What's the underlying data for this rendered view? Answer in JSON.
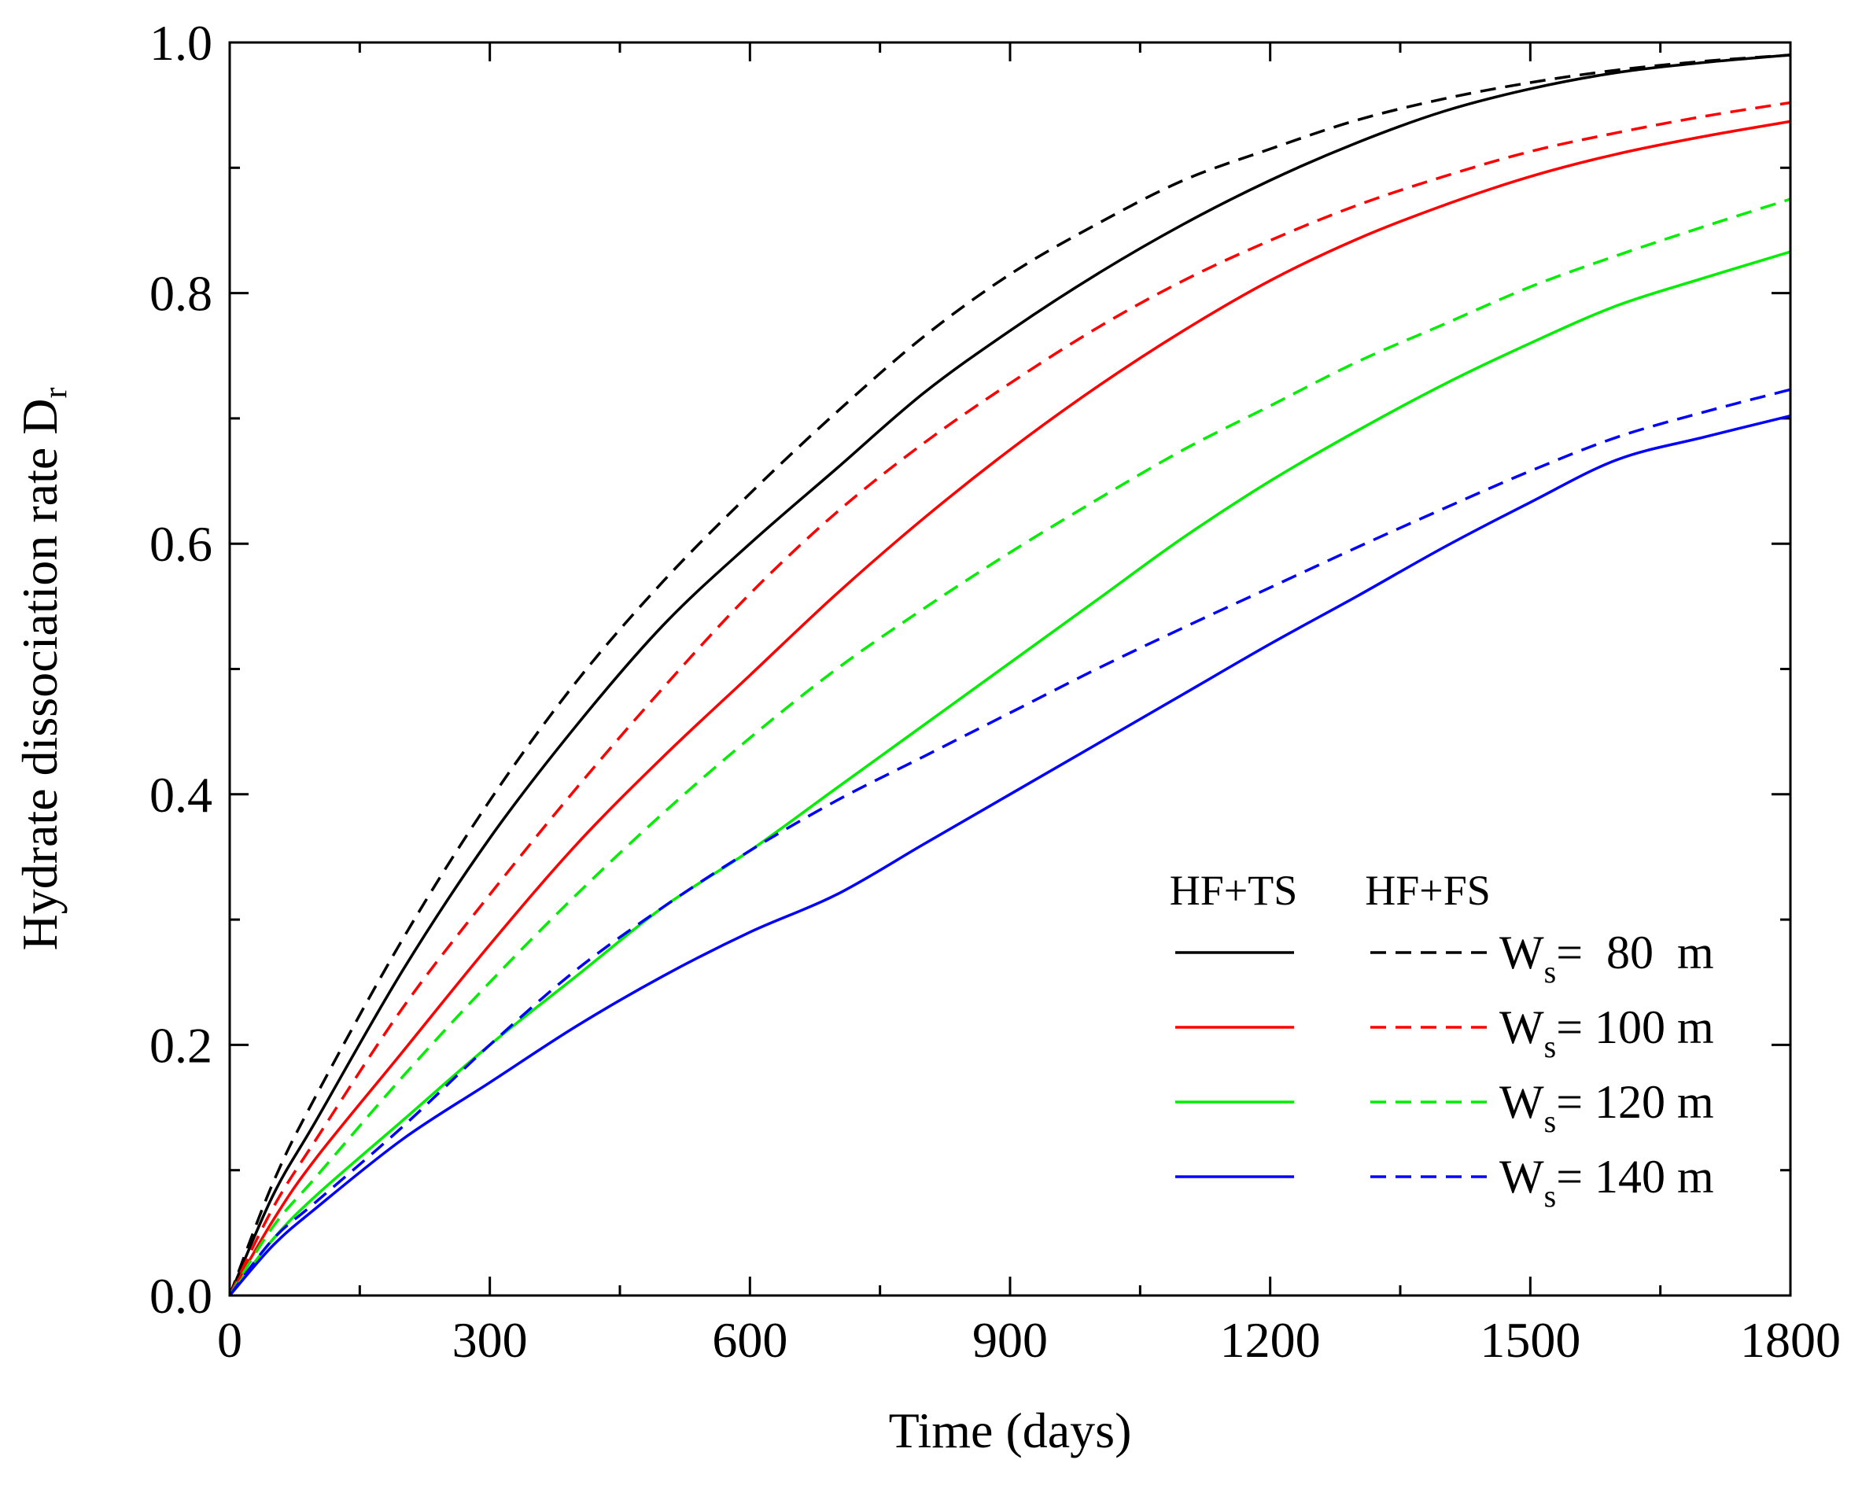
{
  "chart_data": {
    "type": "line",
    "title": "",
    "xlabel": "Time (days)",
    "ylabel": {
      "main": "Hydrate dissociation rate D",
      "subscript": "r"
    },
    "xlim": [
      0,
      1800
    ],
    "ylim": [
      0.0,
      1.0
    ],
    "x_ticks": [
      0,
      300,
      600,
      900,
      1200,
      1500,
      1800
    ],
    "x_tick_labels": [
      "0",
      "300",
      "600",
      "900",
      "1200",
      "1500",
      "1800"
    ],
    "x_minor_ticks": [
      150,
      450,
      750,
      1050,
      1350,
      1650
    ],
    "y_ticks": [
      0.0,
      0.2,
      0.4,
      0.6,
      0.8,
      1.0
    ],
    "y_tick_labels": [
      "0.0",
      "0.2",
      "0.4",
      "0.6",
      "0.8",
      "1.0"
    ],
    "y_minor_ticks": [
      0.1,
      0.3,
      0.5,
      0.7,
      0.9
    ],
    "grid": false,
    "legend_position": "bottom-right",
    "legend": {
      "col_headers": [
        "HF+TS",
        "HF+FS"
      ],
      "entries": [
        {
          "prefix": "W",
          "subscript": "s",
          "suffix": "=  80  m",
          "color": "#000000"
        },
        {
          "prefix": "W",
          "subscript": "s",
          "suffix": "= 100 m",
          "color": "#ff0000"
        },
        {
          "prefix": "W",
          "subscript": "s",
          "suffix": "= 120 m",
          "color": "#00ee00"
        },
        {
          "prefix": "W",
          "subscript": "s",
          "suffix": "= 140 m",
          "color": "#0000ff"
        }
      ]
    },
    "x": [
      0,
      50,
      100,
      200,
      300,
      400,
      500,
      600,
      700,
      800,
      900,
      1000,
      1100,
      1200,
      1300,
      1400,
      1500,
      1600,
      1700,
      1800
    ],
    "series": [
      {
        "name": "HF+TS Ws=80 m",
        "style": "solid",
        "color": "#000000",
        "values": [
          0.0,
          0.08,
          0.14,
          0.26,
          0.365,
          0.455,
          0.535,
          0.6,
          0.66,
          0.72,
          0.77,
          0.815,
          0.855,
          0.89,
          0.92,
          0.945,
          0.963,
          0.976,
          0.984,
          0.99
        ]
      },
      {
        "name": "HF+FS Ws=80 m",
        "style": "dashed",
        "color": "#000000",
        "values": [
          0.0,
          0.09,
          0.16,
          0.285,
          0.395,
          0.49,
          0.57,
          0.64,
          0.705,
          0.765,
          0.815,
          0.855,
          0.89,
          0.915,
          0.938,
          0.955,
          0.968,
          0.978,
          0.985,
          0.99
        ]
      },
      {
        "name": "HF+TS Ws=100 m",
        "style": "solid",
        "color": "#ff0000",
        "values": [
          0.0,
          0.06,
          0.11,
          0.195,
          0.28,
          0.36,
          0.43,
          0.495,
          0.56,
          0.62,
          0.675,
          0.725,
          0.77,
          0.81,
          0.843,
          0.87,
          0.893,
          0.911,
          0.925,
          0.937
        ]
      },
      {
        "name": "HF+FS Ws=100 m",
        "style": "dashed",
        "color": "#ff0000",
        "values": [
          0.0,
          0.07,
          0.125,
          0.23,
          0.32,
          0.405,
          0.485,
          0.56,
          0.625,
          0.68,
          0.728,
          0.772,
          0.81,
          0.842,
          0.87,
          0.893,
          0.913,
          0.928,
          0.941,
          0.952
        ]
      },
      {
        "name": "HF+TS Ws=120 m",
        "style": "solid",
        "color": "#00ee00",
        "values": [
          0.0,
          0.045,
          0.08,
          0.14,
          0.2,
          0.255,
          0.31,
          0.355,
          0.405,
          0.455,
          0.505,
          0.555,
          0.605,
          0.65,
          0.69,
          0.727,
          0.76,
          0.79,
          0.812,
          0.833
        ]
      },
      {
        "name": "HF+FS Ws=120 m",
        "style": "dashed",
        "color": "#00ee00",
        "values": [
          0.0,
          0.055,
          0.095,
          0.175,
          0.25,
          0.32,
          0.385,
          0.445,
          0.5,
          0.548,
          0.593,
          0.635,
          0.675,
          0.71,
          0.745,
          0.775,
          0.805,
          0.83,
          0.853,
          0.875
        ]
      },
      {
        "name": "HF+TS Ws=140 m",
        "style": "solid",
        "color": "#0000ff",
        "values": [
          0.0,
          0.04,
          0.07,
          0.125,
          0.17,
          0.215,
          0.255,
          0.29,
          0.32,
          0.36,
          0.4,
          0.44,
          0.48,
          0.52,
          0.558,
          0.597,
          0.633,
          0.667,
          0.685,
          0.702
        ]
      },
      {
        "name": "HF+FS Ws=140 m",
        "style": "dashed",
        "color": "#0000ff",
        "values": [
          0.0,
          0.045,
          0.075,
          0.135,
          0.2,
          0.26,
          0.31,
          0.355,
          0.395,
          0.43,
          0.465,
          0.5,
          0.533,
          0.565,
          0.597,
          0.628,
          0.658,
          0.685,
          0.705,
          0.723
        ]
      }
    ]
  }
}
